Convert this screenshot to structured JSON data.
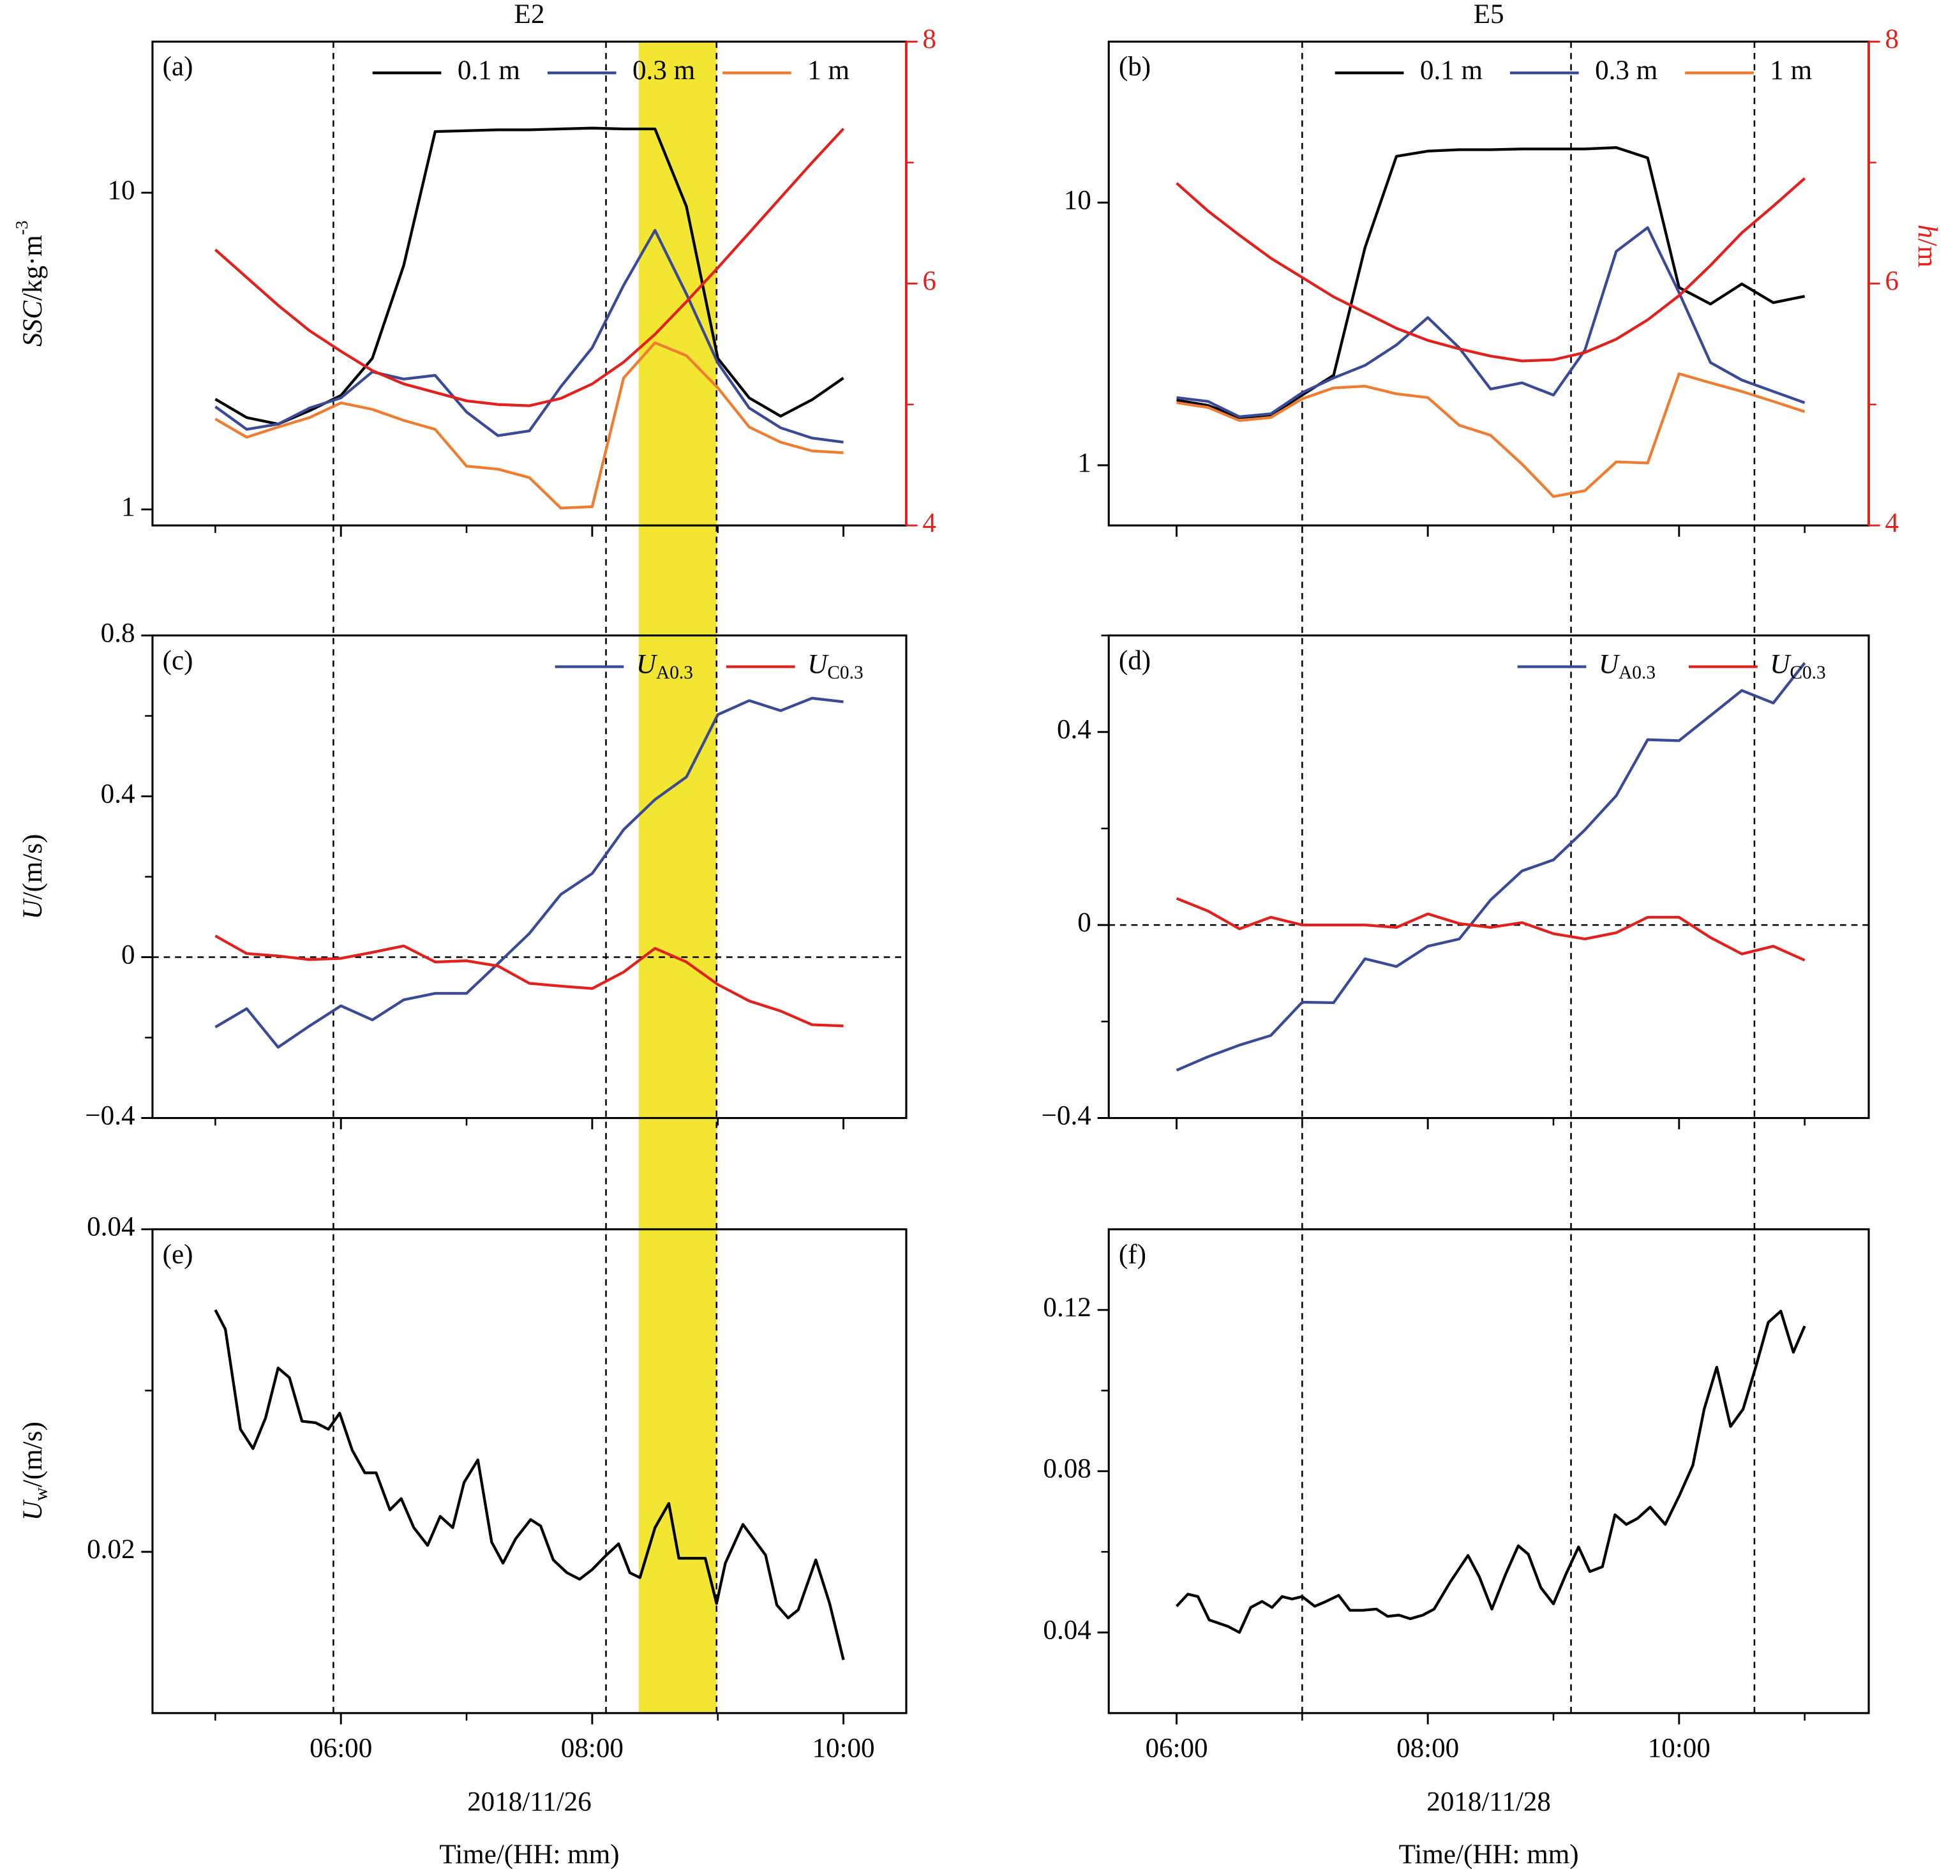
{
  "chart_data": [
    {
      "type": "line",
      "panel_label": "(a)",
      "title": "E2",
      "ylog": true,
      "ylabel": [
        {
          "text": "SSC",
          "style": "italic"
        },
        {
          "text": "/kg·m"
        },
        {
          "text": "-3",
          "style": "sup"
        }
      ],
      "xlim": [
        4.5,
        10.5
      ],
      "ylim": [
        0.89,
        30
      ],
      "yticks": [
        1,
        10
      ],
      "y2lim": [
        4,
        8
      ],
      "y2ticks": [
        4,
        6,
        8
      ],
      "y2minor": [
        5,
        7
      ],
      "vlines": [
        5.94,
        8.11,
        8.99
      ],
      "highlight": [
        8.37,
        8.99
      ],
      "highlight_color": "#f2e632",
      "legend": "upper right",
      "x": [
        5,
        5.25,
        5.5,
        5.75,
        6,
        6.25,
        6.5,
        6.75,
        7,
        7.25,
        7.5,
        7.75,
        8,
        8.25,
        8.5,
        8.75,
        9,
        9.25,
        9.5,
        9.75,
        10
      ],
      "series": [
        {
          "name": "0.1 m",
          "color": "#000000",
          "values": [
            2.23,
            1.95,
            1.86,
            2.05,
            2.29,
            3.0,
            5.9,
            15.6,
            15.7,
            15.8,
            15.8,
            15.9,
            16.0,
            15.9,
            15.9,
            9.05,
            3.0,
            2.25,
            1.97,
            2.22,
            2.6
          ]
        },
        {
          "name": "0.3 m",
          "color": "#3a4a94",
          "values": [
            2.11,
            1.79,
            1.86,
            2.09,
            2.25,
            2.72,
            2.58,
            2.65,
            2.03,
            1.71,
            1.77,
            2.44,
            3.24,
            5.1,
            7.61,
            4.79,
            2.9,
            2.09,
            1.81,
            1.68,
            1.63
          ]
        },
        {
          "name": "1 m",
          "color": "#ee7d31",
          "values": [
            1.93,
            1.69,
            1.82,
            1.95,
            2.17,
            2.07,
            1.91,
            1.79,
            1.37,
            1.34,
            1.26,
            1.01,
            1.02,
            2.6,
            3.36,
            3.06,
            2.42,
            1.82,
            1.63,
            1.53,
            1.51
          ]
        },
        {
          "color": "#e0211d",
          "axis": "y2",
          "values": [
            6.28,
            6.05,
            5.82,
            5.61,
            5.44,
            5.28,
            5.17,
            5.1,
            5.03,
            5.0,
            4.99,
            5.05,
            5.17,
            5.35,
            5.58,
            5.85,
            6.13,
            6.42,
            6.71,
            7.0,
            7.28
          ]
        }
      ]
    },
    {
      "type": "line",
      "panel_label": "(b)",
      "title": "E5",
      "ylog": true,
      "y2label": [
        {
          "text": "h",
          "style": "italic"
        },
        {
          "text": "/m"
        }
      ],
      "xlim": [
        5.46,
        11.51
      ],
      "ylim": [
        0.59,
        41
      ],
      "yticks": [
        1,
        10
      ],
      "y2lim": [
        4,
        8
      ],
      "y2ticks": [
        4,
        6,
        8
      ],
      "y2minor": [
        5,
        7
      ],
      "vlines": [
        7.0,
        9.14,
        10.6
      ],
      "legend": "upper right",
      "x": [
        6,
        6.25,
        6.5,
        6.75,
        7,
        7.25,
        7.5,
        7.75,
        8,
        8.25,
        8.5,
        8.75,
        9,
        9.25,
        9.5,
        9.75,
        10,
        10.25,
        10.5,
        10.75,
        11
      ],
      "series": [
        {
          "name": "0.1 m",
          "color": "#000000",
          "values": [
            1.77,
            1.69,
            1.52,
            1.55,
            1.85,
            2.2,
            6.74,
            15.0,
            15.7,
            15.9,
            15.9,
            16.0,
            16.0,
            16.0,
            16.2,
            14.8,
            4.75,
            4.11,
            4.9,
            4.16,
            4.4
          ]
        },
        {
          "name": "0.3 m",
          "color": "#3a4a94",
          "values": [
            1.81,
            1.75,
            1.53,
            1.57,
            1.89,
            2.15,
            2.4,
            2.87,
            3.65,
            2.8,
            1.95,
            2.06,
            1.85,
            2.74,
            6.52,
            8.03,
            4.54,
            2.46,
            2.11,
            1.91,
            1.73
          ]
        },
        {
          "name": "1 m",
          "color": "#ee7d31",
          "values": [
            1.73,
            1.66,
            1.48,
            1.52,
            1.79,
            1.97,
            2.0,
            1.87,
            1.81,
            1.42,
            1.3,
            1.01,
            0.76,
            0.8,
            1.03,
            1.02,
            2.23,
            2.06,
            1.91,
            1.75,
            1.6
          ]
        },
        {
          "color": "#e0211d",
          "axis": "y2",
          "values": [
            6.83,
            6.6,
            6.4,
            6.21,
            6.05,
            5.89,
            5.76,
            5.63,
            5.53,
            5.46,
            5.4,
            5.36,
            5.37,
            5.43,
            5.54,
            5.7,
            5.9,
            6.15,
            6.42,
            6.64,
            6.87
          ]
        }
      ]
    },
    {
      "type": "line",
      "panel_label": "(c)",
      "ylabel": [
        {
          "text": "U",
          "style": "italic"
        },
        {
          "text": "/(m/s)"
        }
      ],
      "xlim": [
        4.5,
        10.5
      ],
      "ylim": [
        -0.4,
        0.8
      ],
      "yticks": [
        {
          "value": -0.4,
          "label": "−0.4"
        },
        0,
        0.4,
        0.8
      ],
      "yminor": [
        -0.2,
        0.2,
        0.6
      ],
      "hline": 0,
      "legend": "upper right",
      "x": [
        5,
        5.25,
        5.5,
        5.75,
        6,
        6.25,
        6.5,
        6.75,
        7,
        7.25,
        7.5,
        7.75,
        8,
        8.25,
        8.5,
        8.75,
        9,
        9.25,
        9.5,
        9.75,
        10
      ],
      "series": [
        {
          "name": [
            {
              "text": "U",
              "style": "italic"
            },
            {
              "text": "A0.3",
              "style": "sub"
            }
          ],
          "color": "#3a4a94",
          "values": [
            -0.174,
            -0.128,
            -0.224,
            -0.171,
            -0.121,
            -0.156,
            -0.106,
            -0.09,
            -0.09,
            -0.016,
            0.059,
            0.156,
            0.208,
            0.317,
            0.392,
            0.448,
            0.603,
            0.638,
            0.613,
            0.644,
            0.635
          ]
        },
        {
          "name": [
            {
              "text": "U",
              "style": "italic"
            },
            {
              "text": "C0.3",
              "style": "sub"
            }
          ],
          "color": "#e0211d",
          "values": [
            0.053,
            0.009,
            0.003,
            -0.006,
            -0.003,
            0.012,
            0.028,
            -0.012,
            -0.009,
            -0.022,
            -0.065,
            -0.072,
            -0.078,
            -0.037,
            0.022,
            -0.012,
            -0.068,
            -0.109,
            -0.134,
            -0.168,
            -0.171
          ]
        }
      ]
    },
    {
      "type": "line",
      "panel_label": "(d)",
      "xlim": [
        5.46,
        11.51
      ],
      "ylim": [
        -0.4,
        0.6
      ],
      "yticks": [
        {
          "value": -0.4,
          "label": "−0.4"
        },
        0,
        0.4
      ],
      "yminor": [
        -0.2,
        0.2,
        0.6
      ],
      "hline": 0,
      "legend": "upper right",
      "x": [
        6,
        6.25,
        6.5,
        6.75,
        7,
        7.25,
        7.5,
        7.75,
        8,
        8.25,
        8.5,
        8.75,
        9,
        9.25,
        9.5,
        9.75,
        10,
        10.25,
        10.5,
        10.75,
        11
      ],
      "series": [
        {
          "name": [
            {
              "text": "U",
              "style": "italic"
            },
            {
              "text": "A0.3",
              "style": "sub"
            }
          ],
          "color": "#3a4a94",
          "values": [
            -0.301,
            -0.273,
            -0.249,
            -0.229,
            -0.16,
            -0.161,
            -0.07,
            -0.086,
            -0.044,
            -0.029,
            0.052,
            0.112,
            0.135,
            0.197,
            0.268,
            0.384,
            0.382,
            0.434,
            0.486,
            0.46,
            0.543
          ]
        },
        {
          "name": [
            {
              "text": "U",
              "style": "italic"
            },
            {
              "text": "C0.3",
              "style": "sub"
            }
          ],
          "color": "#e0211d",
          "values": [
            0.055,
            0.029,
            -0.008,
            0.016,
            0,
            0,
            0,
            -0.005,
            0.023,
            0.003,
            -0.005,
            0.005,
            -0.018,
            -0.029,
            -0.016,
            0.016,
            0.016,
            -0.026,
            -0.06,
            -0.044,
            -0.073
          ]
        }
      ]
    },
    {
      "type": "line",
      "panel_label": "(e)",
      "ylabel": [
        {
          "text": "U",
          "style": "italic"
        },
        {
          "text": "w",
          "style": "sub"
        },
        {
          "text": "/(m/s)"
        }
      ],
      "date": "2018/11/26",
      "xlabel": "Time/(HH: mm)",
      "xlim": [
        4.5,
        10.5
      ],
      "xticks": [
        {
          "value": 6,
          "label": "06:00"
        },
        {
          "value": 8,
          "label": "08:00"
        },
        {
          "value": 10,
          "label": "10:00"
        }
      ],
      "xminor": [
        5,
        7,
        9
      ],
      "ylim": [
        0.01,
        0.04
      ],
      "yticks": [
        0.02,
        0.04
      ],
      "yminor": [
        0.03
      ],
      "x": [
        5.0,
        5.08,
        5.2,
        5.3,
        5.4,
        5.5,
        5.59,
        5.69,
        5.8,
        5.9,
        5.99,
        6.09,
        6.19,
        6.28,
        6.39,
        6.48,
        6.58,
        6.69,
        6.79,
        6.89,
        6.98,
        7.09,
        7.2,
        7.29,
        7.39,
        7.51,
        7.59,
        7.69,
        7.8,
        7.9,
        8.0,
        8.1,
        8.21,
        8.3,
        8.38,
        8.5,
        8.61,
        8.69,
        8.9,
        8.99,
        9.06,
        9.2,
        9.38,
        9.47,
        9.56,
        9.64,
        9.78,
        9.89,
        10.0
      ],
      "series": [
        {
          "color": "#000000",
          "values": [
            0.035,
            0.0338,
            0.0276,
            0.0264,
            0.0283,
            0.0314,
            0.0308,
            0.0281,
            0.028,
            0.0276,
            0.0286,
            0.0263,
            0.0249,
            0.0249,
            0.0226,
            0.0233,
            0.0215,
            0.0204,
            0.0222,
            0.0215,
            0.0243,
            0.0257,
            0.0206,
            0.0193,
            0.0208,
            0.022,
            0.0216,
            0.0195,
            0.0187,
            0.0183,
            0.0189,
            0.0197,
            0.0205,
            0.0187,
            0.0184,
            0.0215,
            0.023,
            0.0196,
            0.0196,
            0.0168,
            0.0193,
            0.0217,
            0.0198,
            0.0167,
            0.0159,
            0.0164,
            0.0195,
            0.0168,
            0.0133
          ]
        }
      ]
    },
    {
      "type": "line",
      "panel_label": "(f)",
      "date": "2018/11/28",
      "xlabel": "Time/(HH: mm)",
      "xlim": [
        5.46,
        11.51
      ],
      "xticks": [
        {
          "value": 6,
          "label": "06:00"
        },
        {
          "value": 8,
          "label": "08:00"
        },
        {
          "value": 10,
          "label": "10:00"
        }
      ],
      "xminor": [
        7,
        9,
        11
      ],
      "ylim": [
        0.02,
        0.14
      ],
      "yticks": [
        0.04,
        0.08,
        0.12
      ],
      "yminor": [
        0.06,
        0.1
      ],
      "x": [
        6.0,
        6.09,
        6.17,
        6.26,
        6.41,
        6.5,
        6.59,
        6.68,
        6.76,
        6.84,
        6.92,
        7.0,
        7.1,
        7.19,
        7.29,
        7.38,
        7.48,
        7.59,
        7.68,
        7.77,
        7.86,
        7.96,
        8.05,
        8.18,
        8.32,
        8.41,
        8.51,
        8.62,
        8.72,
        8.8,
        8.9,
        9.0,
        9.1,
        9.2,
        9.29,
        9.39,
        9.49,
        9.58,
        9.67,
        9.77,
        9.89,
        10.0,
        10.11,
        10.2,
        10.3,
        10.41,
        10.51,
        10.61,
        10.71,
        10.81,
        10.91,
        11.0
      ],
      "series": [
        {
          "color": "#000000",
          "values": [
            0.0465,
            0.0495,
            0.0489,
            0.0431,
            0.0415,
            0.04,
            0.0462,
            0.0477,
            0.0462,
            0.0489,
            0.0483,
            0.0489,
            0.0465,
            0.0477,
            0.0492,
            0.0455,
            0.0455,
            0.0458,
            0.044,
            0.0443,
            0.0434,
            0.0443,
            0.0458,
            0.0526,
            0.0591,
            0.0538,
            0.0458,
            0.0545,
            0.0615,
            0.0594,
            0.0511,
            0.0471,
            0.0545,
            0.0612,
            0.0551,
            0.0563,
            0.0692,
            0.0668,
            0.0683,
            0.0711,
            0.0668,
            0.0738,
            0.0815,
            0.0954,
            0.1058,
            0.0911,
            0.0954,
            0.1058,
            0.1169,
            0.1197,
            0.1095,
            0.116
          ]
        }
      ]
    }
  ]
}
